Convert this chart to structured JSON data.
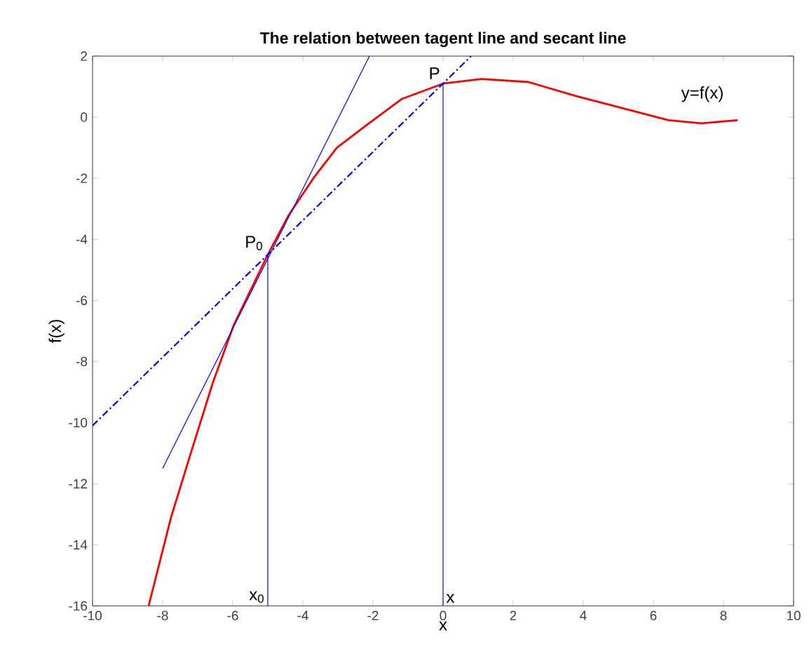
{
  "chart_data": {
    "type": "line",
    "title": "The relation between tagent line and secant line",
    "xlabel": "x",
    "ylabel": "f(x)",
    "xlim": [
      -10,
      10
    ],
    "ylim": [
      -16,
      2
    ],
    "xticks": [
      -10,
      -8,
      -6,
      -4,
      -2,
      0,
      2,
      4,
      6,
      8,
      10
    ],
    "yticks": [
      2,
      0,
      -2,
      -4,
      -6,
      -8,
      -10,
      -12,
      -14,
      -16
    ],
    "grid": false,
    "marker": "none",
    "series": [
      {
        "color": "#ff0000",
        "x": [
          -8.4,
          -7.76,
          -7.17,
          -6.57,
          -5.97,
          -5.0,
          -4.4,
          -3.7,
          -3.03,
          -2.23,
          -1.17,
          0,
          1.1,
          2.44,
          3.77,
          5.1,
          6.43,
          7.37,
          8.4
        ],
        "values": [
          -16,
          -13.1,
          -10.9,
          -8.7,
          -6.8,
          -4.5,
          -3.2,
          -2.0,
          -1.0,
          -0.3,
          0.6,
          1.1,
          1.25,
          1.15,
          0.7,
          0.3,
          -0.1,
          -0.2,
          -0.1
        ]
      },
      {
        "color": "#0000ff",
        "x": [
          -8,
          -2.1
        ],
        "values": [
          -11.5,
          2
        ]
      },
      {
        "color": "#0000ff",
        "x": [
          -10,
          0.8
        ],
        "values": [
          -10.1,
          2
        ],
        "line_style": "dashed"
      },
      {
        "color": "#0000ff",
        "x": [
          -5,
          -5
        ],
        "values": [
          -16,
          -4.5
        ]
      },
      {
        "color": "#0000ff",
        "x": [
          0,
          0
        ],
        "values": [
          -16,
          1.1
        ]
      }
    ],
    "annotations": [
      {
        "text": "P$_{0}$",
        "x": -5,
        "y": -4.5
      },
      {
        "text": "P",
        "x": 0,
        "y": 1.1
      },
      {
        "text": "y=f(x)",
        "x": 7.4,
        "y": -0.2
      },
      {
        "text": "x$_{0}$",
        "x": -5,
        "y": -16
      },
      {
        "text": "x",
        "x": 0,
        "y": -16
      }
    ]
  }
}
